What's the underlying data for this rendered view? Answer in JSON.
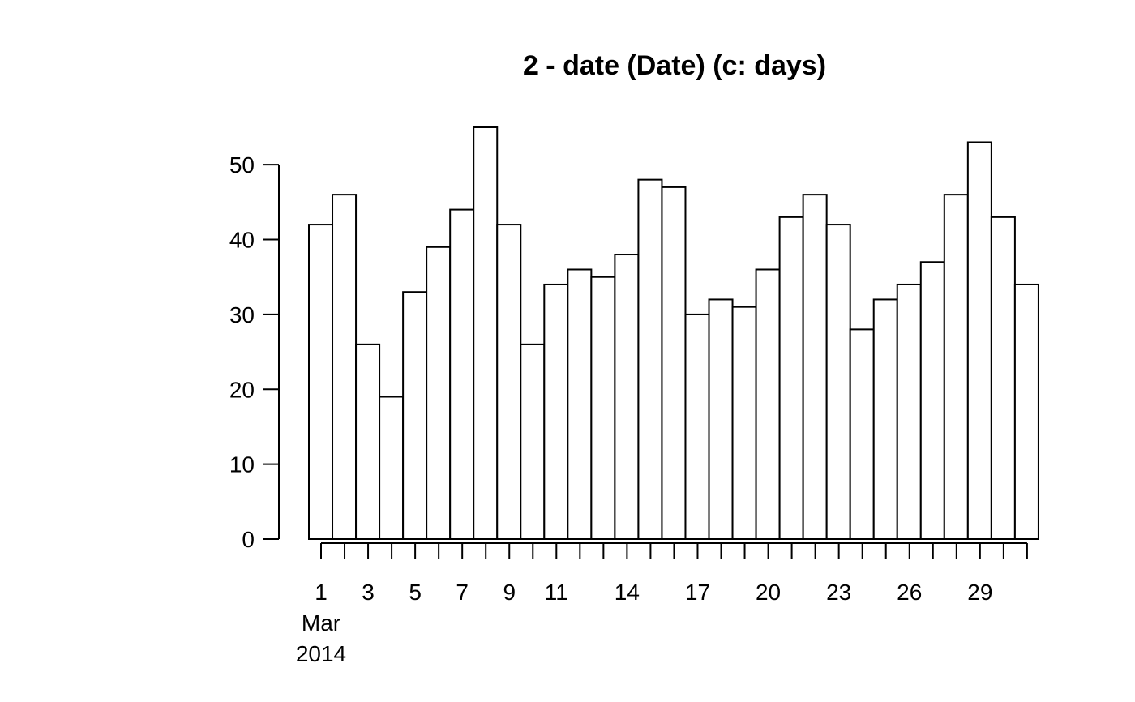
{
  "chart_data": {
    "type": "bar",
    "title": "2 - date (Date) (c: days)",
    "xlabel": "",
    "ylabel": "",
    "categories": [
      "2014-03-01",
      "2014-03-02",
      "2014-03-03",
      "2014-03-04",
      "2014-03-05",
      "2014-03-06",
      "2014-03-07",
      "2014-03-08",
      "2014-03-09",
      "2014-03-10",
      "2014-03-11",
      "2014-03-12",
      "2014-03-13",
      "2014-03-14",
      "2014-03-15",
      "2014-03-16",
      "2014-03-17",
      "2014-03-18",
      "2014-03-19",
      "2014-03-20",
      "2014-03-21",
      "2014-03-22",
      "2014-03-23",
      "2014-03-24",
      "2014-03-25",
      "2014-03-26",
      "2014-03-27",
      "2014-03-28",
      "2014-03-29",
      "2014-03-30",
      "2014-03-31"
    ],
    "values": [
      42,
      46,
      26,
      19,
      33,
      39,
      44,
      55,
      42,
      26,
      34,
      36,
      35,
      38,
      48,
      47,
      30,
      32,
      31,
      36,
      43,
      46,
      42,
      28,
      32,
      34,
      37,
      46,
      53,
      43,
      34
    ],
    "ylim": [
      0,
      55
    ],
    "y_ticks": [
      0,
      10,
      20,
      30,
      40,
      50
    ],
    "x_tick_labels": [
      {
        "day": 1,
        "label": "1"
      },
      {
        "day": 3,
        "label": "3"
      },
      {
        "day": 5,
        "label": "5"
      },
      {
        "day": 7,
        "label": "7"
      },
      {
        "day": 9,
        "label": "9"
      },
      {
        "day": 11,
        "label": "11"
      },
      {
        "day": 14,
        "label": "14"
      },
      {
        "day": 17,
        "label": "17"
      },
      {
        "day": 20,
        "label": "20"
      },
      {
        "day": 23,
        "label": "23"
      },
      {
        "day": 26,
        "label": "26"
      },
      {
        "day": 29,
        "label": "29"
      }
    ],
    "x_month_label": "Mar",
    "x_year_label": "2014",
    "grid": false
  }
}
